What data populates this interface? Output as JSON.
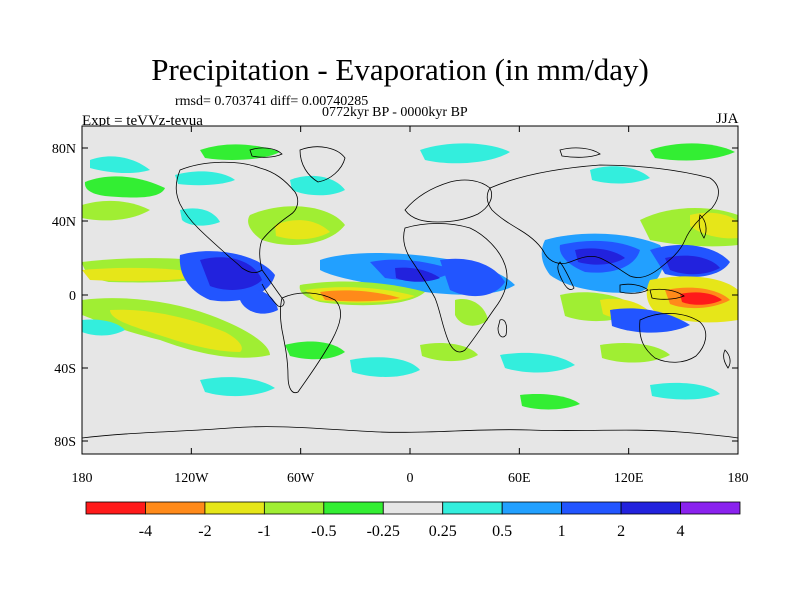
{
  "title": "Precipitation - Evaporation (in mm/day)",
  "stats_line": "rmsd= 0.703741 diff= 0.00740285",
  "period_line": "0772kyr BP - 0000kyr BP",
  "experiment_line": "Expt = teVVz-tevua",
  "season": "JJA",
  "map": {
    "projection": "cylindrical-equidistant",
    "lon_range": [
      -180,
      180
    ],
    "lat_range": [
      -90,
      90
    ],
    "lat_tick_labels": [
      "80N",
      "40N",
      "0",
      "40S",
      "80S"
    ],
    "lon_tick_labels": [
      "180",
      "120W",
      "60W",
      "0",
      "60E",
      "120E",
      "180"
    ],
    "background_color": "#e6e6e6",
    "coastline_color": "#000000"
  },
  "colorbar": {
    "labels": [
      "-4",
      "-2",
      "-1",
      "-0.5",
      "-0.25",
      "0.25",
      "0.5",
      "1",
      "2",
      "4"
    ],
    "colors": [
      "#ff1a1a",
      "#ff8a1a",
      "#e6e619",
      "#a0ee33",
      "#33ee33",
      "#e6e6e6",
      "#33eedd",
      "#22a0ff",
      "#2255ff",
      "#2222dd",
      "#8a22ee"
    ]
  }
}
